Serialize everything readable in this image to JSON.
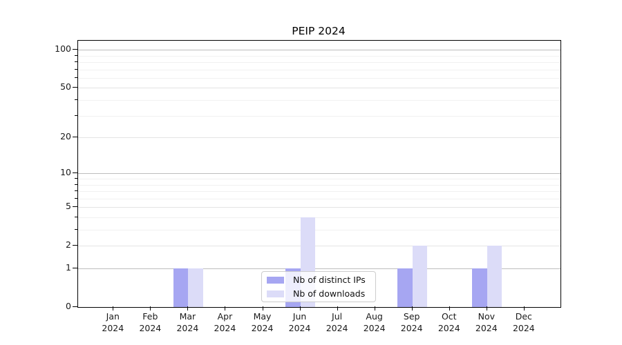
{
  "chart_data": {
    "type": "bar",
    "title": "PEIP 2024",
    "categories": [
      "Jan",
      "Feb",
      "Mar",
      "Apr",
      "May",
      "Jun",
      "Jul",
      "Aug",
      "Sep",
      "Oct",
      "Nov",
      "Dec"
    ],
    "category_year": "2024",
    "series": [
      {
        "name": "Nb of distinct IPs",
        "color": "#a6a6f2",
        "values": [
          0,
          0,
          1,
          0,
          0,
          1,
          0,
          0,
          1,
          0,
          1,
          0
        ]
      },
      {
        "name": "Nb of downloads",
        "color": "#dcdcf8",
        "values": [
          0,
          0,
          1,
          0,
          0,
          4,
          0,
          0,
          2,
          0,
          2,
          0
        ]
      }
    ],
    "xlabel": "",
    "ylabel": "",
    "y_scale": "log1p",
    "ylim": [
      0,
      118
    ],
    "y_major_ticks": [
      0,
      1,
      2,
      5,
      10,
      20,
      50,
      100
    ],
    "y_minor_ticks": [
      3,
      4,
      6,
      7,
      8,
      9,
      30,
      40,
      60,
      70,
      80,
      90
    ],
    "grid": true,
    "legend_position": "lower center",
    "colors": {
      "grid_strong": "#bdbdbd",
      "grid_medium": "#e3e3e3",
      "grid_minor": "#f1f1f1",
      "axis": "#000000",
      "text": "#191919",
      "legend_border": "#cccccc"
    }
  }
}
